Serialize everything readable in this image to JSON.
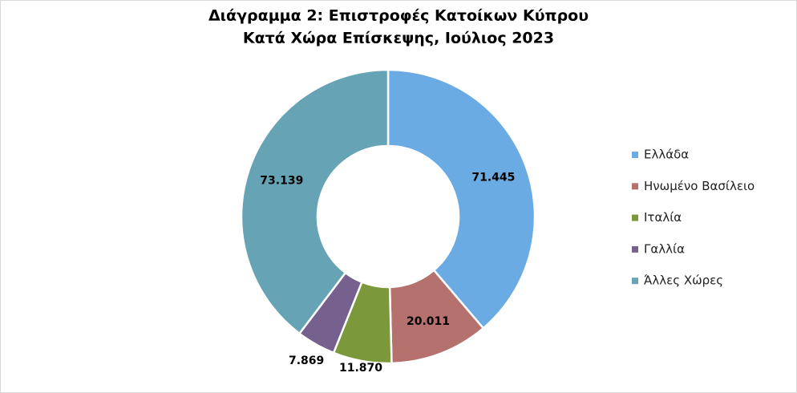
{
  "chart_data": {
    "type": "donut",
    "title": [
      "Διάγραμμα 2: Επιστροφές Κατοίκων Κύπρου",
      "Κατά Χώρα Επίσκεψης, Ιούλιος 2023"
    ],
    "categories": [
      "Ελλάδα",
      "Ηνωμένο Βασίλειο",
      "Ιταλία",
      "Γαλλία",
      "Άλλες Χώρες"
    ],
    "values": [
      71445,
      20011,
      11870,
      7869,
      73139
    ],
    "value_labels": [
      "71.445",
      "20.011",
      "11.870",
      "7.869",
      "73.139"
    ],
    "colors": [
      "#6aabe4",
      "#b4716d",
      "#7b983b",
      "#76608e",
      "#66a3b4"
    ],
    "legend": "right"
  }
}
